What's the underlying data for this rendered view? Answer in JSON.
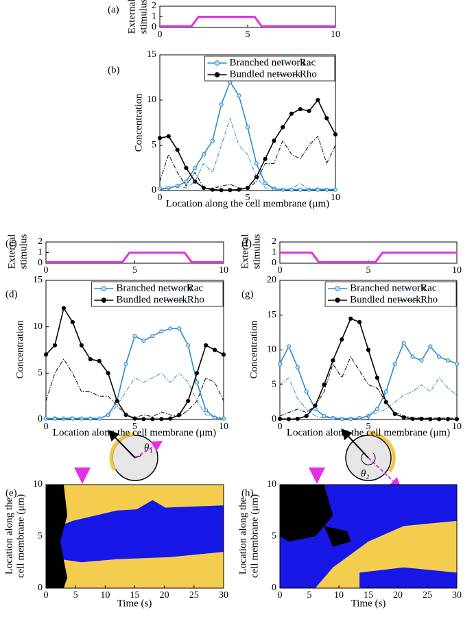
{
  "chart_data": [
    {
      "type": "line",
      "label": "(a)",
      "ylabel": [
        "External",
        "stimulus"
      ],
      "xlim": [
        0,
        10
      ],
      "ylim": [
        0,
        2
      ],
      "xticks": [
        0,
        5,
        10
      ],
      "yticks": [
        0,
        1,
        2
      ],
      "x": [
        0,
        1.8,
        2.2,
        5.4,
        5.8,
        10
      ],
      "series": [
        {
          "color": "#e62ee6",
          "values": [
            0.1,
            0.1,
            1,
            1,
            0.1,
            0.1
          ]
        }
      ]
    },
    {
      "type": "line",
      "label": "(b)",
      "ylabel": "Concentration",
      "xlabel": "Location along the cell membrane (μm)",
      "xlim": [
        0,
        10
      ],
      "ylim": [
        0,
        15
      ],
      "xticks": [
        0,
        5,
        10
      ],
      "yticks": [
        0,
        5,
        10,
        15
      ],
      "legend": "top",
      "x": [
        0,
        0.5,
        1,
        1.5,
        2,
        2.5,
        3,
        3.5,
        4,
        4.5,
        5,
        5.5,
        6,
        6.5,
        7,
        7.5,
        8,
        8.5,
        9,
        9.5,
        10
      ],
      "series": [
        {
          "name": "Branched network",
          "color": "#2a8ad0",
          "marker": true,
          "values": [
            0.2,
            0.3,
            0.5,
            1,
            2.5,
            4,
            5.5,
            9.5,
            12,
            10.5,
            7,
            3,
            0.8,
            0.2,
            0.1,
            0.1,
            0.1,
            0.1,
            0.1,
            0.1,
            0.1
          ]
        },
        {
          "name": "Bundled network",
          "color": "#000000",
          "marker": true,
          "values": [
            5.8,
            6,
            4.5,
            2.5,
            1,
            0.3,
            0.1,
            0.05,
            0.05,
            0.1,
            0.3,
            1.5,
            3.5,
            5.5,
            7,
            8.5,
            9,
            8.8,
            10,
            8,
            6.2
          ]
        },
        {
          "name": "Rac",
          "color": "#2a8ad0",
          "dash": "dashdot",
          "values": [
            0.1,
            0.2,
            0.5,
            0.3,
            1,
            3,
            2,
            5,
            8,
            5,
            4,
            1.5,
            0.3,
            0.2,
            0.1,
            0.2,
            0.8,
            0.1,
            0.3,
            0.1,
            0.2
          ]
        },
        {
          "name": "Rho",
          "color": "#000000",
          "dash": "dashdot",
          "values": [
            1,
            4,
            2,
            0.5,
            2,
            0.3,
            0.2,
            0.5,
            0.7,
            0.3,
            0.2,
            1,
            3,
            3,
            5.5,
            4,
            3.5,
            5,
            6,
            3,
            5
          ]
        }
      ]
    },
    {
      "type": "line",
      "label": "(c)",
      "ylabel": [
        "External",
        "stimulus"
      ],
      "xlim": [
        0,
        10
      ],
      "ylim": [
        0,
        2
      ],
      "xticks": [
        0,
        5,
        10
      ],
      "yticks": [
        0,
        1,
        2
      ],
      "x": [
        0,
        4.3,
        4.7,
        7.8,
        8.2,
        10
      ],
      "series": [
        {
          "color": "#e62ee6",
          "values": [
            0.1,
            0.1,
            1,
            1,
            0.1,
            0.1
          ]
        }
      ]
    },
    {
      "type": "line",
      "label": "(d)",
      "ylabel": "Concentration",
      "xlabel": "Location along the cell membrane (μm)",
      "xlim": [
        0,
        10
      ],
      "ylim": [
        0,
        15
      ],
      "xticks": [
        0,
        5,
        10
      ],
      "yticks": [
        0,
        5,
        10,
        15
      ],
      "legend": "top",
      "x": [
        0,
        0.5,
        1,
        1.5,
        2,
        2.5,
        3,
        3.5,
        4,
        4.5,
        5,
        5.5,
        6,
        6.5,
        7,
        7.5,
        8,
        8.5,
        9,
        9.5,
        10
      ],
      "series": [
        {
          "name": "Branched network",
          "color": "#2a8ad0",
          "marker": true,
          "values": [
            0.1,
            0.1,
            0.1,
            0.1,
            0.1,
            0.1,
            0.1,
            0.5,
            2,
            6,
            9,
            8.5,
            9,
            9.5,
            9.8,
            9.8,
            8,
            4,
            1,
            0.2,
            0.1
          ]
        },
        {
          "name": "Bundled network",
          "color": "#000000",
          "marker": true,
          "values": [
            7,
            8,
            12,
            10.5,
            8,
            6.5,
            6.3,
            5,
            2,
            0.5,
            0.1,
            0.05,
            0.05,
            0.05,
            0.1,
            0.5,
            2,
            5,
            8,
            7.5,
            7
          ]
        },
        {
          "name": "Rac",
          "color": "#2a8ad0",
          "dash": "dashdot",
          "values": [
            0.1,
            0.2,
            0.1,
            0.3,
            0.1,
            0.2,
            0.1,
            0.5,
            1.5,
            3,
            4.5,
            4,
            4.5,
            5,
            4,
            5,
            4,
            2,
            0.5,
            0.3,
            0.1
          ]
        },
        {
          "name": "Rho",
          "color": "#000000",
          "dash": "dashdot",
          "values": [
            2,
            5,
            6.5,
            5,
            3,
            3,
            2.5,
            2.5,
            1.5,
            0.5,
            0.2,
            0.5,
            0.3,
            0.8,
            0.5,
            0.3,
            1,
            2,
            4.5,
            4,
            2
          ]
        }
      ]
    },
    {
      "type": "line",
      "label": "(f)",
      "ylabel": [
        "External",
        "stimulus"
      ],
      "xlim": [
        0,
        10
      ],
      "ylim": [
        0,
        2
      ],
      "xticks": [
        0,
        5,
        10
      ],
      "yticks": [
        0,
        1,
        2
      ],
      "x": [
        0,
        1.8,
        2.2,
        5.4,
        5.8,
        10
      ],
      "series": [
        {
          "color": "#e62ee6",
          "values": [
            1,
            1,
            0.1,
            0.1,
            1,
            1
          ]
        }
      ]
    },
    {
      "type": "line",
      "label": "(g)",
      "ylabel": "Concentration",
      "xlabel": "Location along the cell membrane (μm)",
      "xlim": [
        0,
        10
      ],
      "ylim": [
        0,
        20
      ],
      "xticks": [
        0,
        5,
        10
      ],
      "yticks": [
        0,
        5,
        10,
        15,
        20
      ],
      "legend": "top",
      "x": [
        0,
        0.5,
        1,
        1.5,
        2,
        2.5,
        3,
        3.5,
        4,
        4.5,
        5,
        5.5,
        6,
        6.5,
        7,
        7.5,
        8,
        8.5,
        9,
        9.5,
        10
      ],
      "series": [
        {
          "name": "Branched network",
          "color": "#2a8ad0",
          "marker": true,
          "values": [
            8,
            10.5,
            7.5,
            4,
            1.5,
            0.5,
            0.2,
            0.1,
            0.1,
            0.2,
            0.5,
            1.5,
            4,
            8,
            11,
            9,
            8.5,
            10.5,
            9,
            8.5,
            8
          ]
        },
        {
          "name": "Bundled network",
          "color": "#000000",
          "marker": true,
          "values": [
            0.1,
            0.05,
            0.1,
            0.5,
            2,
            5,
            8.5,
            11.5,
            14.5,
            14,
            10,
            6,
            2.5,
            0.8,
            0.3,
            0.1,
            0.1,
            0.05,
            0.05,
            0.05,
            0.05
          ]
        },
        {
          "name": "Rac",
          "color": "#2a8ad0",
          "dash": "dashdot",
          "values": [
            5,
            6,
            3,
            1.5,
            0.5,
            0.2,
            0.3,
            0.1,
            0.2,
            0.1,
            0.5,
            1,
            1.5,
            2.5,
            3.5,
            4,
            5,
            4,
            6,
            4.5,
            3.5
          ]
        },
        {
          "name": "Rho",
          "color": "#000000",
          "dash": "dashdot",
          "values": [
            0.5,
            1,
            1.5,
            1,
            2,
            4,
            8,
            6,
            9,
            7,
            5,
            4.5,
            2.5,
            1,
            0.5,
            0.3,
            0.2,
            0.2,
            0.2,
            0.2,
            0.2
          ]
        }
      ]
    },
    {
      "type": "kymograph",
      "label": "(e)",
      "annotation": "θ₁",
      "ylabel": [
        "Location along the",
        "cell membrane (μm)"
      ],
      "xlabel": "Time (s)",
      "xlim": [
        0,
        30
      ],
      "ylim": [
        0,
        10
      ],
      "xticks": [
        0,
        5,
        10,
        15,
        20,
        25,
        30
      ],
      "yticks": [
        0,
        5,
        10
      ]
    },
    {
      "type": "kymograph",
      "label": "(h)",
      "annotation": "θ₂",
      "ylabel": [
        "Location along the",
        "cell membrane (μm)"
      ],
      "xlabel": "Time (s)",
      "xlim": [
        0,
        30
      ],
      "ylim": [
        0,
        10
      ],
      "xticks": [
        0,
        5,
        10,
        15,
        20,
        25,
        30
      ],
      "yticks": [
        0,
        5,
        10
      ]
    }
  ]
}
